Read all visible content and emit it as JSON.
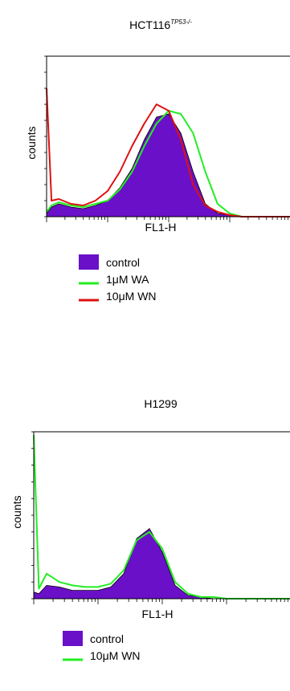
{
  "chart_data": [
    {
      "type": "area",
      "title": "HCT116",
      "title_superscript": "TP53-/-",
      "xlabel": "FL1-H",
      "ylabel": "counts",
      "x_scale": "log",
      "grid": false,
      "legend": "below",
      "x": [
        0.0,
        0.02,
        0.05,
        0.1,
        0.15,
        0.2,
        0.25,
        0.3,
        0.35,
        0.4,
        0.45,
        0.5,
        0.55,
        0.6,
        0.65,
        0.7,
        0.75,
        0.8,
        0.85,
        0.9,
        0.95,
        1.0
      ],
      "series": [
        {
          "name": "control",
          "color": "#6a10c8",
          "style": "filled",
          "values": [
            0.02,
            0.06,
            0.08,
            0.06,
            0.05,
            0.07,
            0.1,
            0.18,
            0.3,
            0.48,
            0.62,
            0.64,
            0.52,
            0.28,
            0.08,
            0.02,
            0.01,
            0.0,
            0.0,
            0.0,
            0.0,
            0.0
          ]
        },
        {
          "name": "1μM WA",
          "color": "#22ee22",
          "style": "line",
          "values": [
            0.03,
            0.07,
            0.09,
            0.07,
            0.06,
            0.08,
            0.1,
            0.17,
            0.28,
            0.44,
            0.58,
            0.66,
            0.64,
            0.52,
            0.28,
            0.08,
            0.02,
            0.0,
            0.0,
            0.0,
            0.0,
            0.0
          ]
        },
        {
          "name": "10μM WN",
          "color": "#dd1111",
          "style": "line",
          "values": [
            0.8,
            0.1,
            0.11,
            0.08,
            0.07,
            0.1,
            0.16,
            0.28,
            0.44,
            0.58,
            0.7,
            0.66,
            0.48,
            0.2,
            0.07,
            0.03,
            0.01,
            0.0,
            0.0,
            0.0,
            0.0,
            0.0
          ]
        }
      ]
    },
    {
      "type": "area",
      "title": "H1299",
      "title_superscript": "",
      "xlabel": "FL1-H",
      "ylabel": "counts",
      "x_scale": "log",
      "grid": false,
      "legend": "below",
      "x": [
        0.0,
        0.02,
        0.05,
        0.1,
        0.15,
        0.2,
        0.25,
        0.3,
        0.35,
        0.4,
        0.45,
        0.5,
        0.55,
        0.6,
        0.65,
        0.7,
        0.75,
        0.8,
        0.85,
        0.9,
        0.95,
        1.0
      ],
      "series": [
        {
          "name": "control",
          "color": "#6a10c8",
          "style": "filled",
          "values": [
            0.04,
            0.03,
            0.08,
            0.07,
            0.05,
            0.05,
            0.05,
            0.07,
            0.15,
            0.36,
            0.42,
            0.28,
            0.08,
            0.02,
            0.01,
            0.0,
            0.0,
            0.0,
            0.0,
            0.0,
            0.0,
            0.0
          ]
        },
        {
          "name": "10μM WN",
          "color": "#22ee22",
          "style": "line",
          "values": [
            0.98,
            0.06,
            0.15,
            0.1,
            0.08,
            0.07,
            0.07,
            0.09,
            0.17,
            0.35,
            0.4,
            0.3,
            0.1,
            0.03,
            0.01,
            0.01,
            0.0,
            0.0,
            0.0,
            0.0,
            0.0,
            0.0
          ]
        }
      ]
    }
  ]
}
